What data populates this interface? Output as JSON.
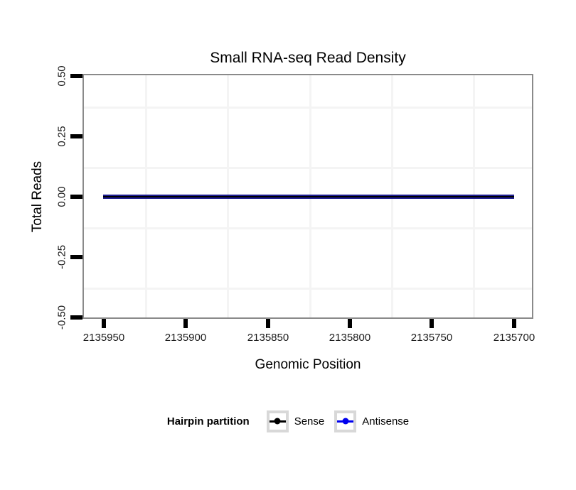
{
  "chart_data": {
    "type": "line",
    "title": "Small RNA-seq Read Density",
    "xlabel": "Genomic Position",
    "ylabel": "Total Reads",
    "x_ticks": [
      "2135950",
      "2135900",
      "2135850",
      "2135800",
      "2135750",
      "2135700"
    ],
    "y_ticks": [
      "0.50",
      "0.25",
      "0.00",
      "-0.25",
      "-0.50"
    ],
    "x_axis_reversed": true,
    "xlim": [
      2135960,
      2135690
    ],
    "ylim": [
      -0.5,
      0.5
    ],
    "grid": "minor gridlines only, very light gray, no major gridlines visible",
    "panel_border_color": "#8a8a8a",
    "minor_grid_color": "#f4f4f4",
    "legend": {
      "title": "Hairpin partition",
      "position": "bottom",
      "entries": [
        {
          "label": "Sense",
          "color": "#000000"
        },
        {
          "label": "Antisense",
          "color": "#0000ee"
        }
      ]
    },
    "series": [
      {
        "name": "Sense",
        "color": "#000000",
        "x": [
          2135950,
          2135700
        ],
        "y": [
          0,
          0
        ]
      },
      {
        "name": "Antisense",
        "color": "#0000ee",
        "x": [
          2135950,
          2135700
        ],
        "y": [
          0,
          0
        ]
      }
    ]
  }
}
